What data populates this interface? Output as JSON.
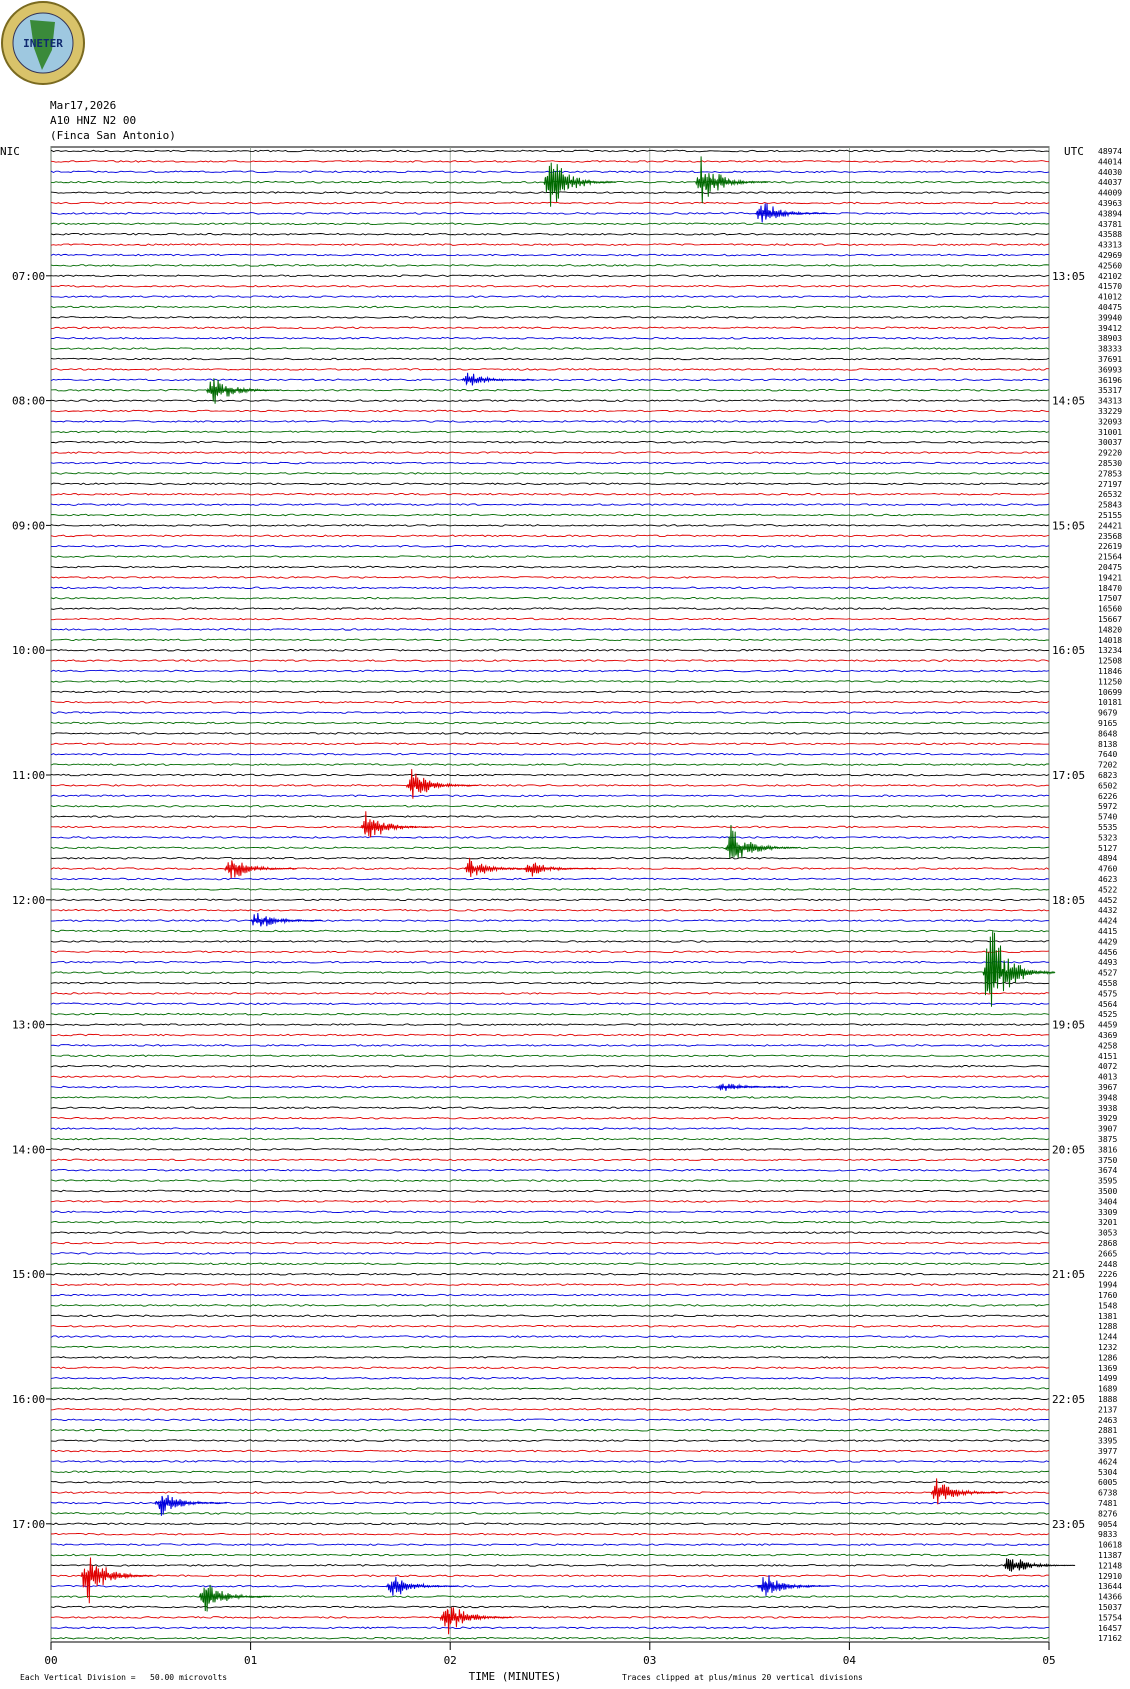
{
  "header": {
    "logo_text": "INETER",
    "date": "Mar17,2026",
    "station": "A10 HNZ N2 00",
    "site": "(Finca San Antonio)"
  },
  "chart_data": {
    "type": "helicorder",
    "left_zone": "NIC",
    "right_zone": "UTC",
    "left_hours": [
      "07:00",
      "08:00",
      "09:00",
      "10:00",
      "11:00",
      "12:00",
      "13:00",
      "14:00",
      "15:00",
      "16:00",
      "17:00"
    ],
    "right_hours": [
      "13:05",
      "14:05",
      "15:05",
      "16:05",
      "17:05",
      "18:05",
      "19:05",
      "20:05",
      "21:05",
      "22:05",
      "23:05"
    ],
    "lines_per_hour": 12,
    "trace_colors": [
      "#000000",
      "#e00000",
      "#0000dd",
      "#006a00"
    ],
    "trace_labels": [
      48974,
      44014,
      44030,
      44037,
      44009,
      43963,
      43894,
      43781,
      43588,
      43313,
      42969,
      42560,
      42102,
      41570,
      41012,
      40475,
      39940,
      39412,
      38903,
      38333,
      37691,
      36993,
      36196,
      35317,
      34313,
      33229,
      32093,
      31001,
      30037,
      29220,
      28530,
      27853,
      27197,
      26532,
      25843,
      25155,
      24421,
      23568,
      22619,
      21564,
      20475,
      19421,
      18470,
      17507,
      16560,
      15667,
      14820,
      14018,
      13234,
      12508,
      11846,
      11250,
      10699,
      10181,
      9679,
      9165,
      8648,
      8138,
      7640,
      7202,
      6823,
      6502,
      6226,
      5972,
      5740,
      5535,
      5323,
      5127,
      4894,
      4760,
      4623,
      4522,
      4452,
      4432,
      4424,
      4415,
      4429,
      4456,
      4493,
      4527,
      4558,
      4575,
      4564,
      4525,
      4459,
      4369,
      4258,
      4151,
      4072,
      4013,
      3967,
      3948,
      3938,
      3929,
      3907,
      3875,
      3816,
      3750,
      3674,
      3595,
      3500,
      3404,
      3309,
      3201,
      3053,
      2868,
      2665,
      2448,
      2226,
      1994,
      1760,
      1548,
      1381,
      1288,
      1244,
      1232,
      1286,
      1369,
      1499,
      1689,
      1888,
      2137,
      2463,
      2881,
      3395,
      3977,
      4624,
      5304,
      6005,
      6738,
      7481,
      8276,
      9054,
      9833,
      10618,
      11387,
      12148,
      12910,
      13644,
      14366,
      15037,
      15754,
      16457,
      17162
    ],
    "events": [
      {
        "line": 3,
        "minute": 2.5,
        "amplitude": 12
      },
      {
        "line": 3,
        "minute": 3.26,
        "amplitude": 9
      },
      {
        "line": 6,
        "minute": 3.56,
        "amplitude": 5
      },
      {
        "line": 23,
        "minute": 0.81,
        "amplitude": 6
      },
      {
        "line": 22,
        "minute": 2.09,
        "amplitude": 3
      },
      {
        "line": 61,
        "minute": 1.81,
        "amplitude": 6
      },
      {
        "line": 65,
        "minute": 1.58,
        "amplitude": 6
      },
      {
        "line": 67,
        "minute": 3.41,
        "amplitude": 8
      },
      {
        "line": 69,
        "minute": 0.9,
        "amplitude": 5
      },
      {
        "line": 69,
        "minute": 2.1,
        "amplitude": 4
      },
      {
        "line": 69,
        "minute": 2.4,
        "amplitude": 3
      },
      {
        "line": 74,
        "minute": 1.03,
        "amplitude": 4
      },
      {
        "line": 79,
        "minute": 4.7,
        "amplitude": 20
      },
      {
        "line": 90,
        "minute": 3.36,
        "amplitude": 2
      },
      {
        "line": 129,
        "minute": 4.44,
        "amplitude": 5
      },
      {
        "line": 130,
        "minute": 0.55,
        "amplitude": 5
      },
      {
        "line": 137,
        "minute": 0.18,
        "amplitude": 10
      },
      {
        "line": 136,
        "minute": 4.8,
        "amplitude": 4
      },
      {
        "line": 138,
        "minute": 1.71,
        "amplitude": 5
      },
      {
        "line": 138,
        "minute": 3.57,
        "amplitude": 5
      },
      {
        "line": 139,
        "minute": 0.77,
        "amplitude": 6
      },
      {
        "line": 141,
        "minute": 1.98,
        "amplitude": 7
      }
    ],
    "xlim": [
      0,
      5
    ],
    "xticks": [
      {
        "value": 0,
        "label": "00"
      },
      {
        "value": 1,
        "label": "01"
      },
      {
        "value": 2,
        "label": "02"
      },
      {
        "value": 3,
        "label": "03"
      },
      {
        "value": 4,
        "label": "04"
      },
      {
        "value": 5,
        "label": "05"
      }
    ],
    "xlabel": "TIME (MINUTES)",
    "scale_note": "Each Vertical Division =   50.00 microvolts",
    "clip_note": "Traces clipped at plus/minus 20 vertical divisions"
  }
}
